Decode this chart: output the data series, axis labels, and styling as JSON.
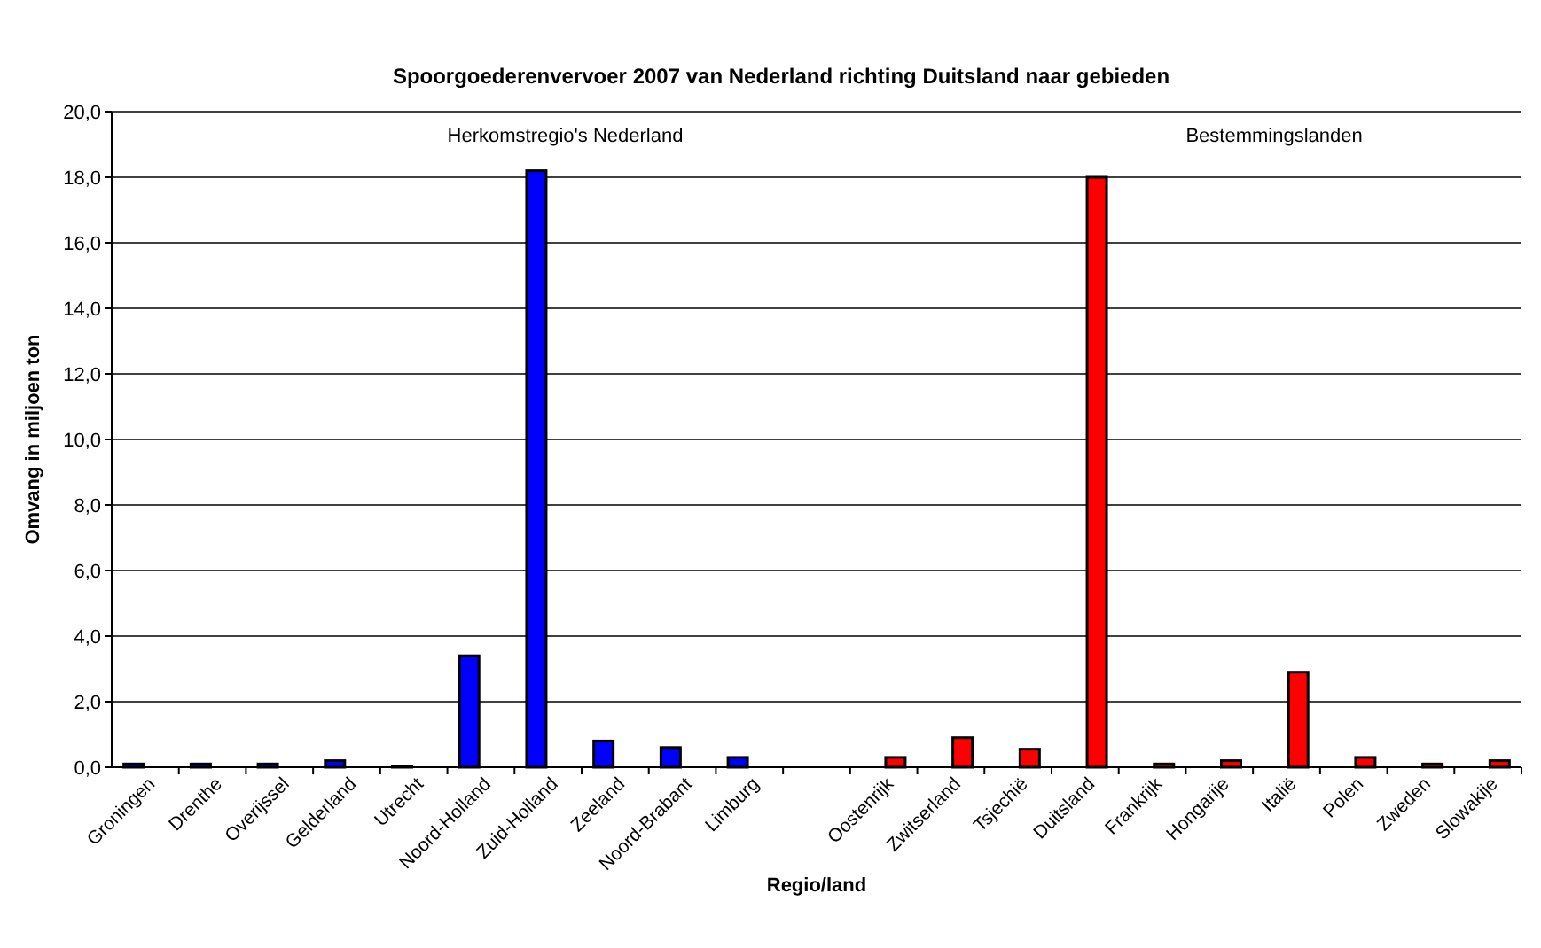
{
  "chart_data": {
    "type": "bar",
    "title": "Spoorgoederenvervoer 2007 van Nederland richting Duitsland naar gebieden",
    "xlabel": "Regio/land",
    "ylabel": "Omvang in miljoen ton",
    "categories": [
      "Groningen",
      "Drenthe",
      "Overijssel",
      "Gelderland",
      "Utrecht",
      "Noord-Holland",
      "Zuid-Holland",
      "Zeeland",
      "Noord-Brabant",
      "Limburg",
      null,
      "Oostenrijk",
      "Zwitserland",
      "Tsjechië",
      "Duitsland",
      "Frankrijk",
      "Hongarije",
      "Italië",
      "Polen",
      "Zweden",
      "Slowakije"
    ],
    "series": [
      {
        "color": "#0000ff",
        "values": [
          0.1,
          0.1,
          0.1,
          0.2,
          0.02,
          3.4,
          18.2,
          0.8,
          0.6,
          0.3,
          null,
          null,
          null,
          null,
          null,
          null,
          null,
          null,
          null,
          null,
          null
        ]
      },
      {
        "color": "#ff0000",
        "values": [
          null,
          null,
          null,
          null,
          null,
          null,
          null,
          null,
          null,
          null,
          null,
          0.3,
          0.9,
          0.55,
          18.0,
          0.1,
          0.2,
          2.9,
          0.3,
          0.1,
          0.2
        ]
      }
    ],
    "ylim": [
      0,
      20
    ],
    "yticks": [
      {
        "value": 0,
        "label": "0,0"
      },
      {
        "value": 2,
        "label": "2,0"
      },
      {
        "value": 4,
        "label": "4,0"
      },
      {
        "value": 6,
        "label": "6,0"
      },
      {
        "value": 8,
        "label": "8,0"
      },
      {
        "value": 10,
        "label": "10,0"
      },
      {
        "value": 12,
        "label": "12,0"
      },
      {
        "value": 14,
        "label": "14,0"
      },
      {
        "value": 16,
        "label": "16,0"
      },
      {
        "value": 18,
        "label": "18,0"
      },
      {
        "value": 20,
        "label": "20,0"
      }
    ],
    "grid": "y",
    "annotations": [
      "Herkomstregio's Nederland",
      "Bestemmingslanden"
    ]
  }
}
